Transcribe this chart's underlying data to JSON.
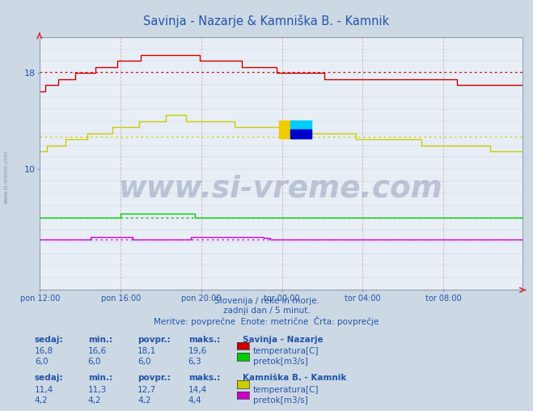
{
  "title": "Savinja - Nazarje & Kamniška B. - Kamnik",
  "title_color": "#2255aa",
  "bg_color": "#ccd8e4",
  "plot_bg_color": "#e8eef5",
  "xlabel_color": "#2255aa",
  "ylabel_color": "#2255aa",
  "n_points": 288,
  "x_tick_labels": [
    "pon 12:00",
    "pon 16:00",
    "pon 20:00",
    "tor 00:00",
    "tor 04:00",
    "tor 08:00"
  ],
  "x_tick_positions": [
    0,
    48,
    96,
    144,
    192,
    240
  ],
  "ylim": [
    0,
    21
  ],
  "yticks": [
    10,
    18
  ],
  "avg_lines": [
    {
      "y": 18.1,
      "color": "#cc0000"
    },
    {
      "y": 12.7,
      "color": "#cccc00"
    },
    {
      "y": 6.0,
      "color": "#00aa00"
    },
    {
      "y": 4.2,
      "color": "#cc00cc"
    }
  ],
  "watermark_text": "www.si-vreme.com",
  "watermark_color": "#1a3060",
  "watermark_alpha": 0.22,
  "footer_lines": [
    "Slovenija / reke in morje.",
    "zadnji dan / 5 minut.",
    "Meritve: povprečne  Enote: metrične  Črta: povprečje"
  ],
  "footer_color": "#2255aa",
  "legend_sections": [
    {
      "title": "Savinja - Nazarje",
      "rows": [
        {
          "sedaj": "16,8",
          "min": "16,6",
          "povpr": "18,1",
          "maks": "19,6",
          "color": "#cc0000",
          "label": "temperatura[C]"
        },
        {
          "sedaj": "6,0",
          "min": "6,0",
          "povpr": "6,0",
          "maks": "6,3",
          "color": "#00cc00",
          "label": "pretok[m3/s]"
        }
      ]
    },
    {
      "title": "Kamniška B. - Kamnik",
      "rows": [
        {
          "sedaj": "11,4",
          "min": "11,3",
          "povpr": "12,7",
          "maks": "14,4",
          "color": "#cccc00",
          "label": "temperatura[C]"
        },
        {
          "sedaj": "4,2",
          "min": "4,2",
          "povpr": "4,2",
          "maks": "4,4",
          "color": "#cc00cc",
          "label": "pretok[m3/s]"
        }
      ]
    }
  ],
  "series_colors": {
    "sav_temp": "#cc0000",
    "sav_flow": "#00cc00",
    "kam_temp": "#cccc00",
    "kam_flow": "#cc00cc"
  }
}
